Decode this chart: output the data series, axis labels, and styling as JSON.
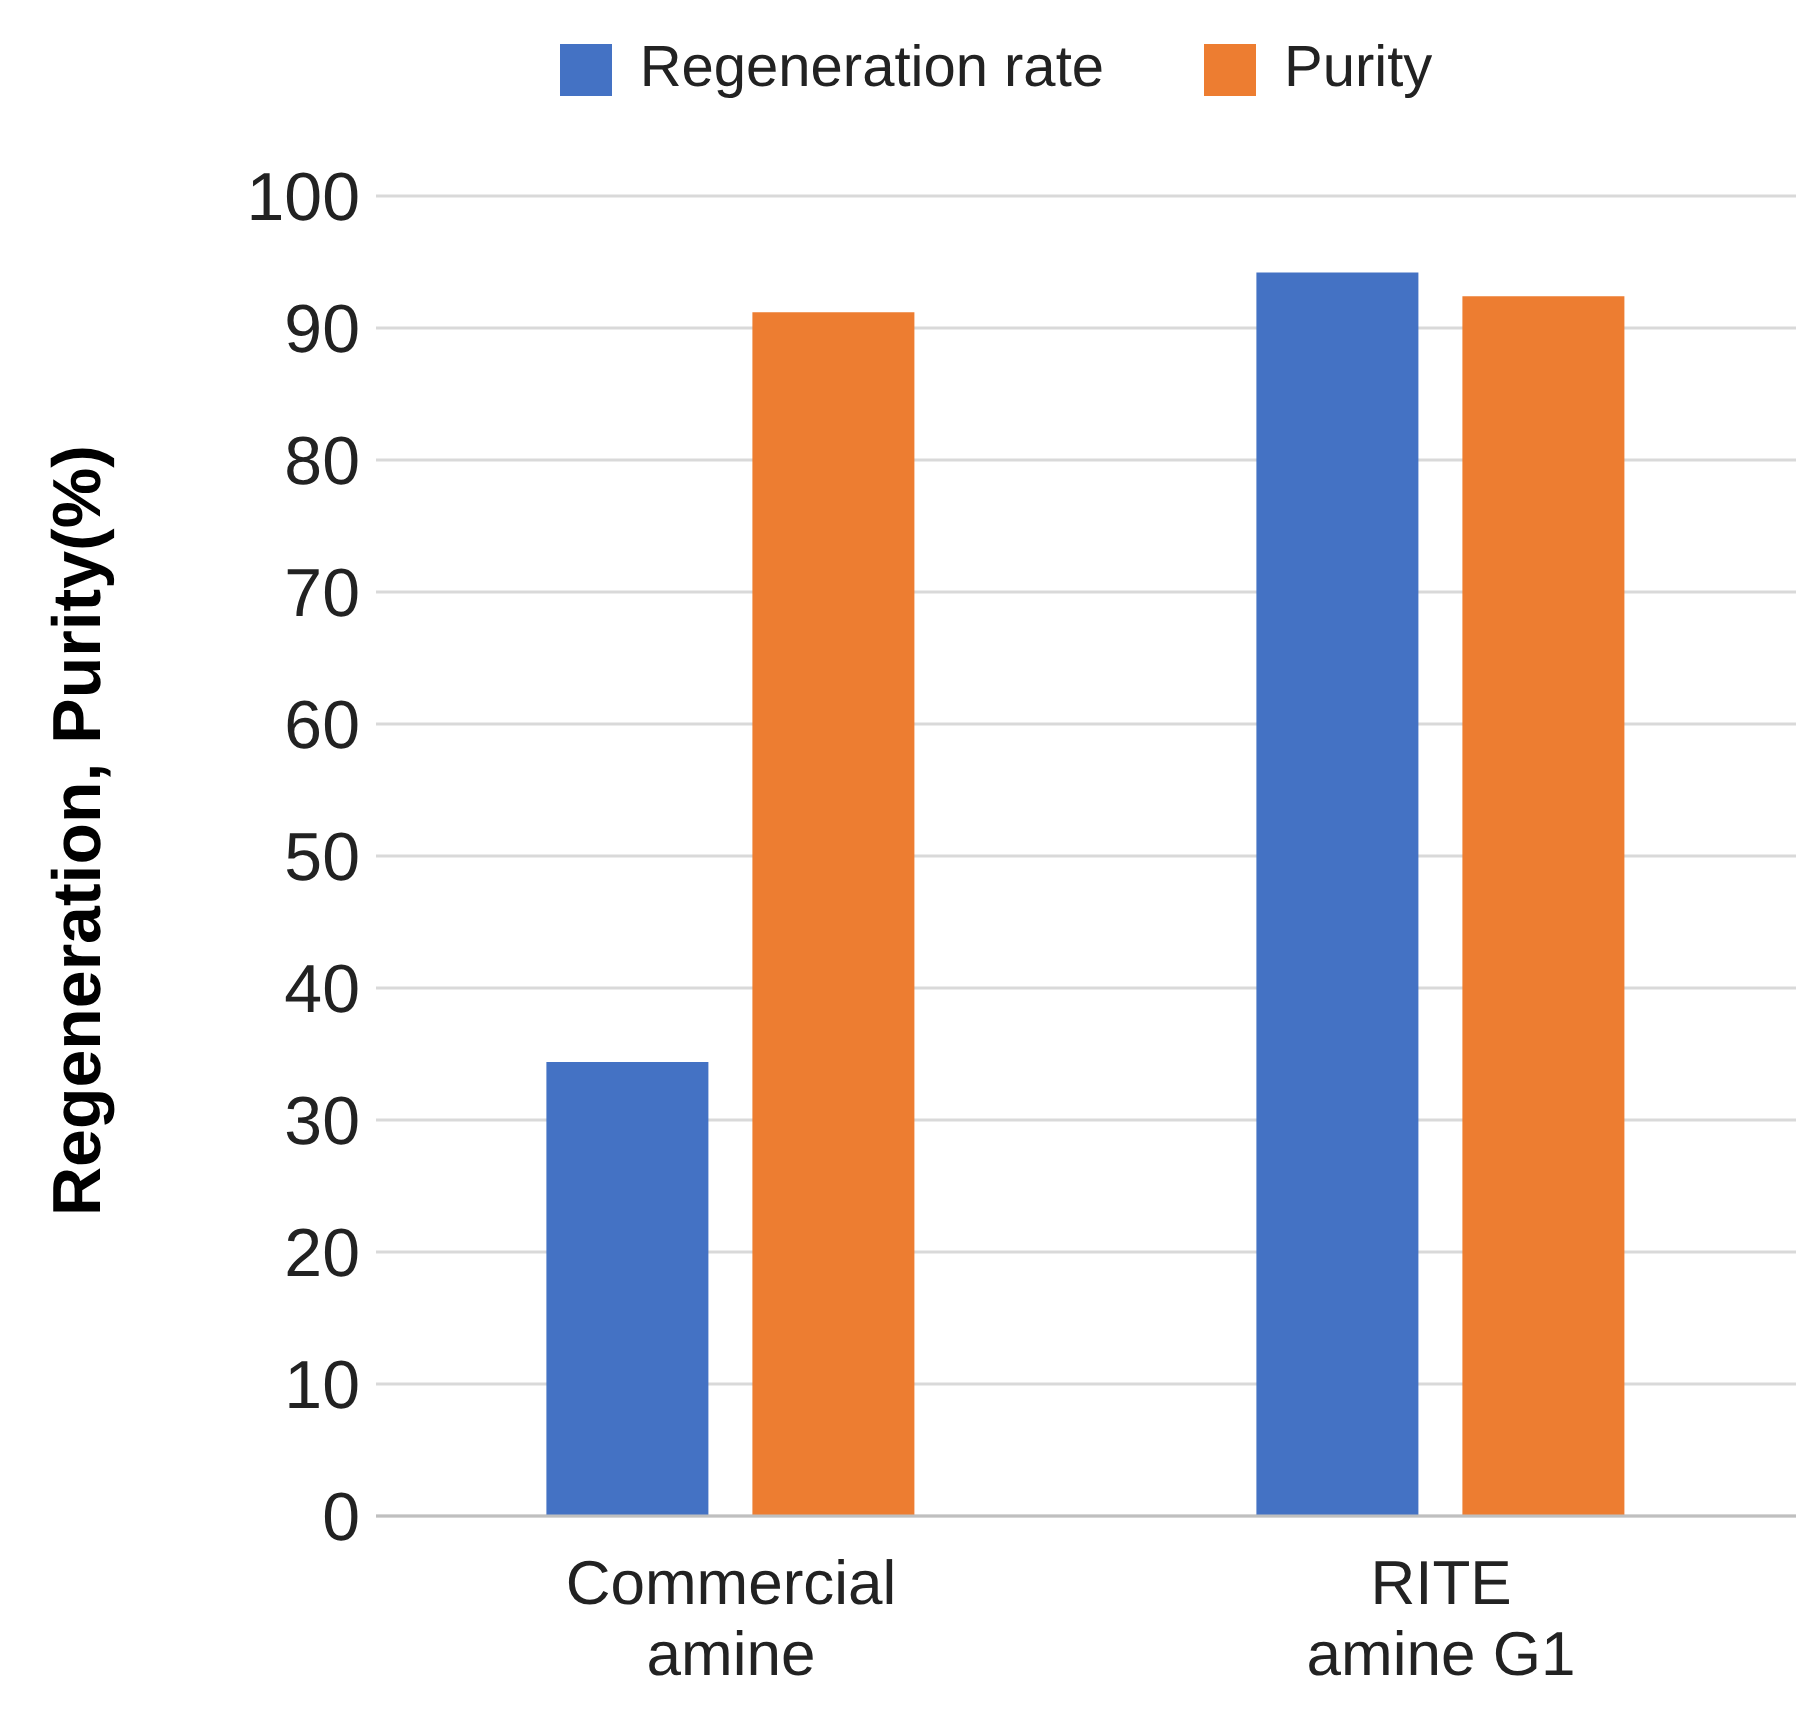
{
  "chart_data": {
    "type": "bar",
    "ylabel": "Regeneration, Purity(%)",
    "categories": [
      "Commercial amine",
      "RITE amine G1"
    ],
    "series": [
      {
        "name": "Regeneration rate",
        "color": "#4472c4",
        "values": [
          34.4,
          94.2
        ]
      },
      {
        "name": "Purity",
        "color": "#ed7d31",
        "values": [
          91.2,
          92.4
        ]
      }
    ],
    "ylim": [
      0,
      100
    ],
    "yticks": [
      0,
      10,
      20,
      30,
      40,
      50,
      60,
      70,
      80,
      90,
      100
    ],
    "grid": "y",
    "legend": "top"
  }
}
